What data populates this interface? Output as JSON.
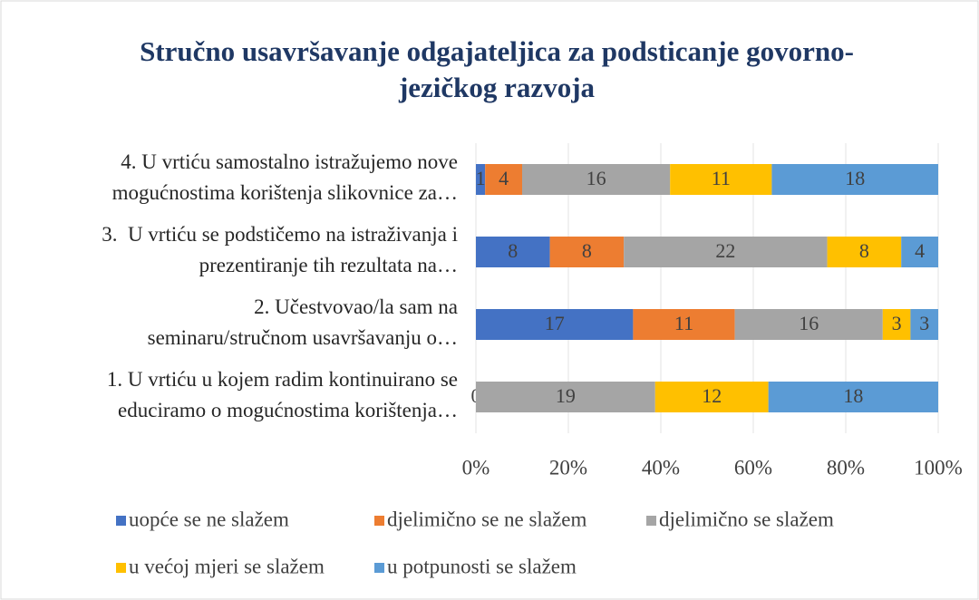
{
  "chart_data": {
    "type": "stacked-bar-100",
    "title": "Stručno usavršavanje odgajateljica za podsticanje govorno-\njezičkog razvoja",
    "categories": [
      "1. U vrtiću u kojem radim kontinuirano se\neduciramo o mogućnostima korištenja…",
      "2. Učestvovao/la sam na\nseminaru/stručnom usavršavanju o…",
      "3.  U vrtiću se podstičemo na istraživanja i\nprezentiranje tih rezultata na…",
      "4. U vrtiću samostalno istražujemo nove\nmogućnostima korištenja slikovnice za…"
    ],
    "series": [
      {
        "name": "uopće se ne slažem",
        "color": "#4472c4",
        "values": [
          0,
          17,
          8,
          1
        ]
      },
      {
        "name": "djelimično se ne slažem",
        "color": "#ed7d31",
        "values": [
          null,
          11,
          8,
          4
        ]
      },
      {
        "name": "djelimično se slažem",
        "color": "#a5a5a5",
        "values": [
          19,
          16,
          22,
          16
        ]
      },
      {
        "name": "u većoj mjeri se slažem",
        "color": "#ffc000",
        "values": [
          12,
          3,
          8,
          11
        ]
      },
      {
        "name": "u potpunosti se slažem",
        "color": "#5b9bd5",
        "values": [
          18,
          3,
          4,
          18
        ]
      }
    ],
    "xlim": [
      0,
      100
    ],
    "xticks": [
      {
        "value": 0,
        "label": "0%"
      },
      {
        "value": 20,
        "label": "20%"
      },
      {
        "value": 40,
        "label": "40%"
      },
      {
        "value": 60,
        "label": "60%"
      },
      {
        "value": 80,
        "label": "80%"
      },
      {
        "value": 100,
        "label": "100%"
      }
    ],
    "grid": true,
    "legend": "bottom"
  }
}
